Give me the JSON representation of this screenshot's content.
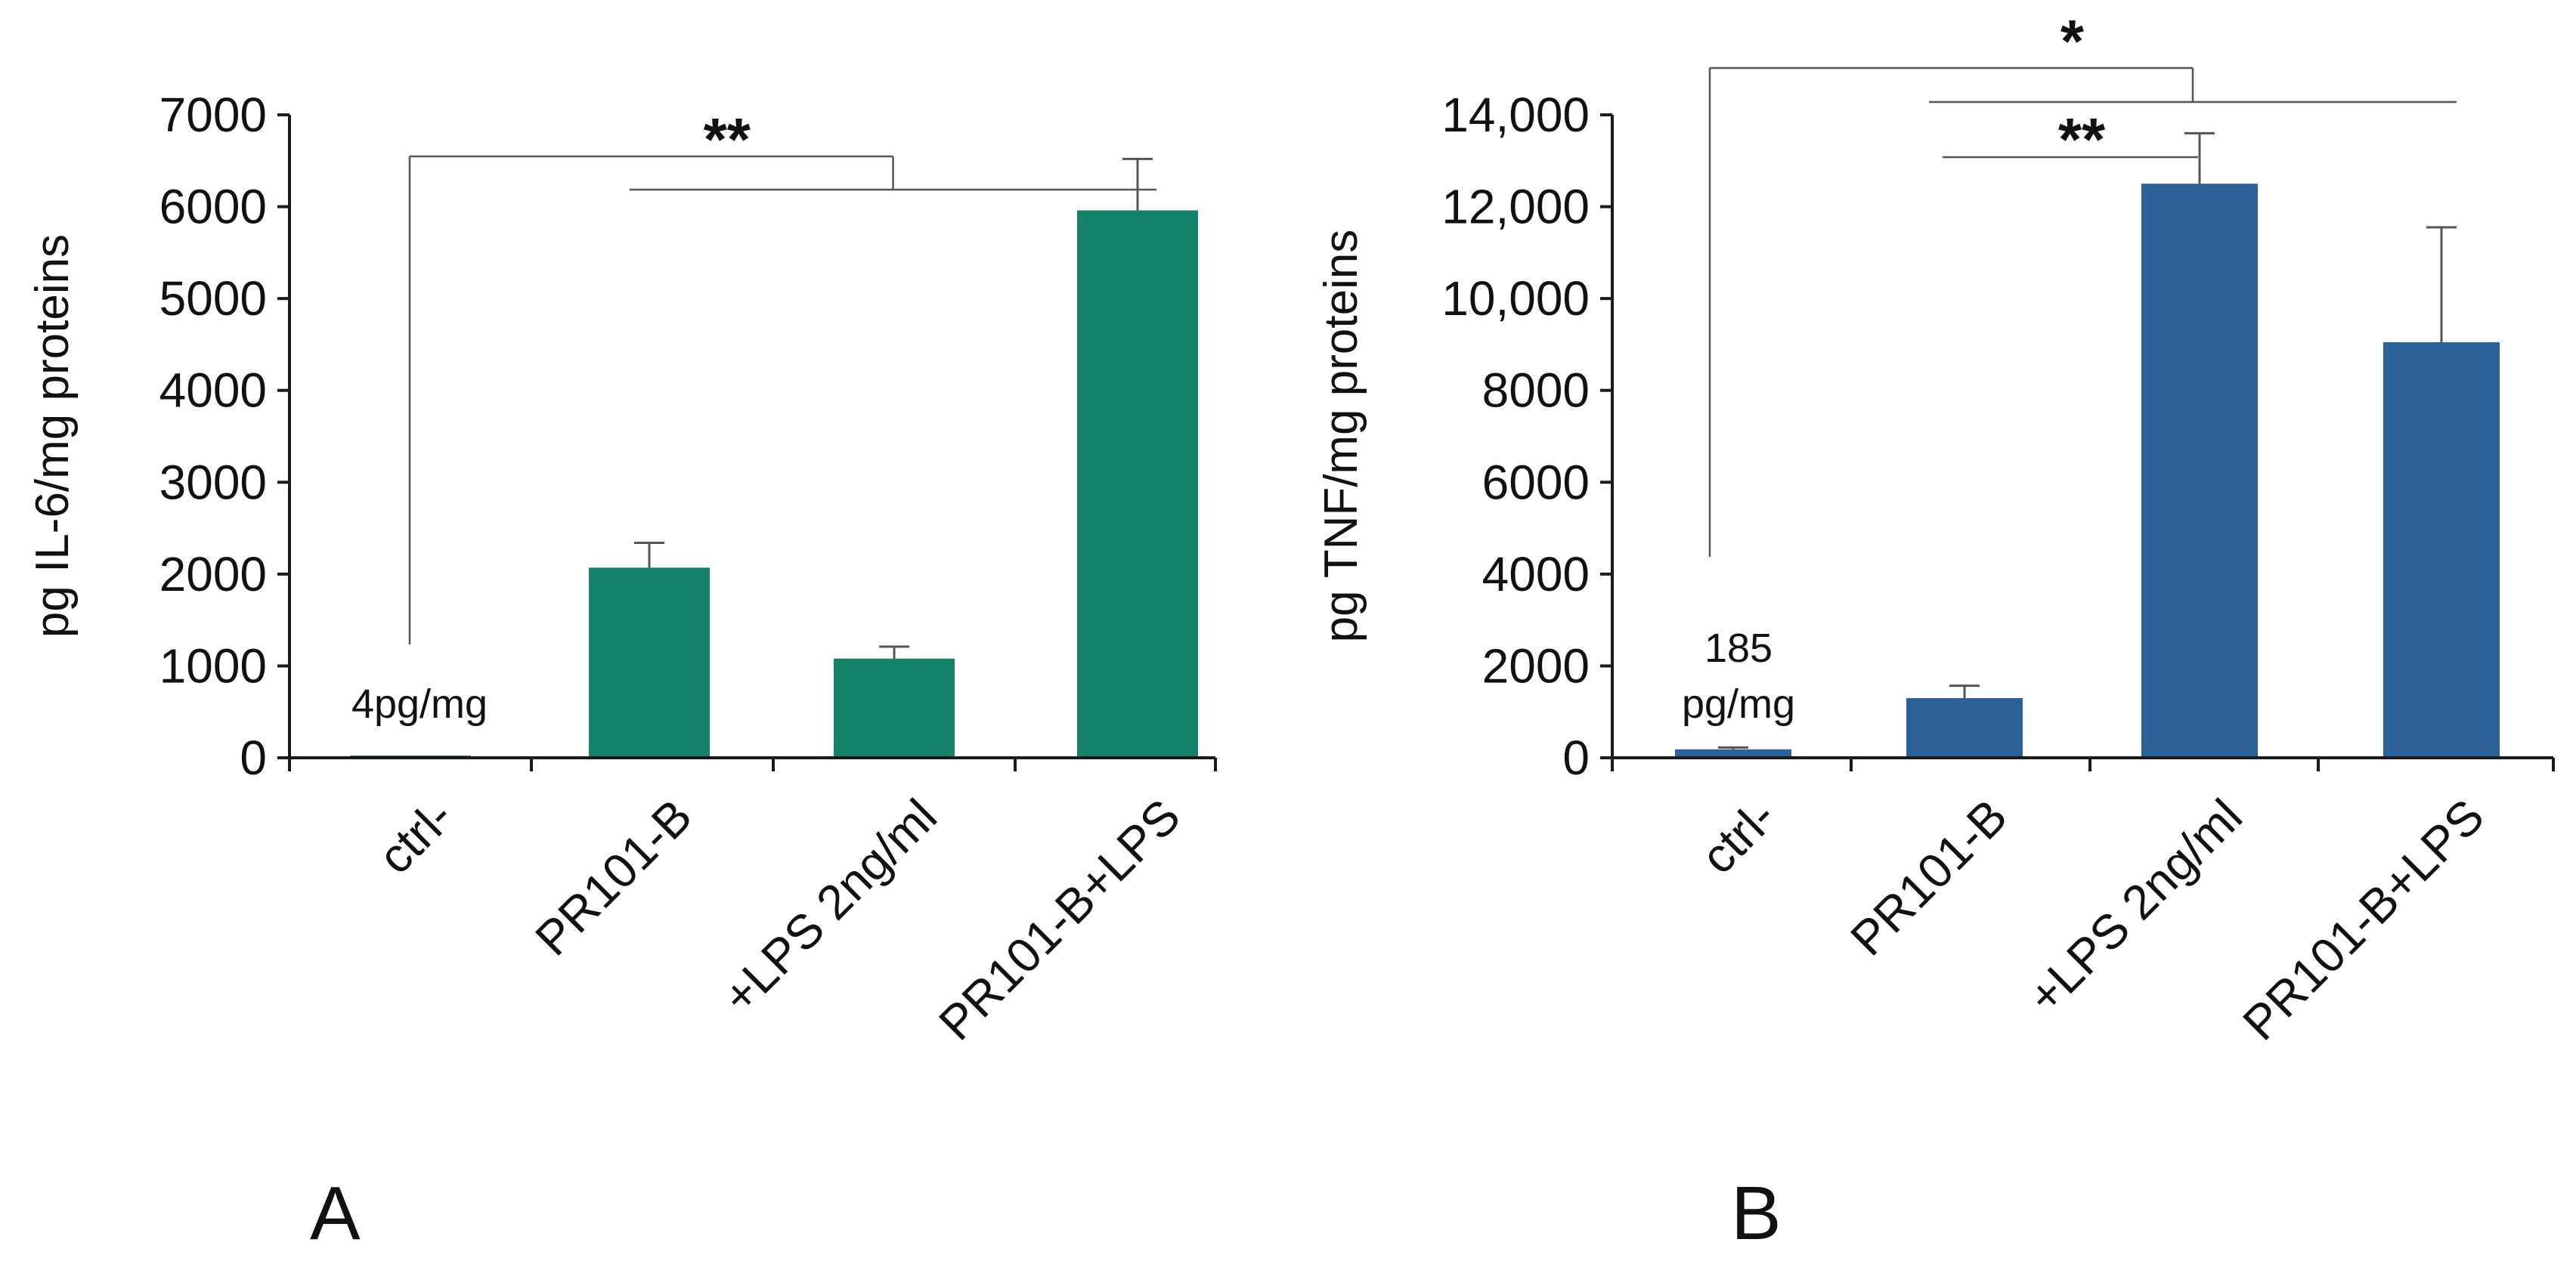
{
  "chart_data": [
    {
      "panel": "A",
      "type": "bar",
      "title": "",
      "xlabel": "",
      "ylabel": "pg IL-6/mg proteins",
      "ylim": [
        0,
        7000
      ],
      "yticks": [
        0,
        1000,
        2000,
        3000,
        4000,
        5000,
        6000,
        7000
      ],
      "ytick_labels": [
        "0",
        "1000",
        "2000",
        "3000",
        "4000",
        "5000",
        "6000",
        "7000"
      ],
      "categories": [
        "ctrl-",
        "PR101-B",
        "+LPS 2ng/ml",
        "PR101-B+LPS"
      ],
      "values": [
        4,
        2070,
        1080,
        5960
      ],
      "errors": [
        0,
        270,
        130,
        560
      ],
      "color": "#15836A",
      "annotations": [
        {
          "text": "4pg/mg",
          "category": "ctrl-"
        }
      ],
      "significance": [
        {
          "text": "**",
          "from": "ctrl-",
          "to_group": [
            "PR101-B",
            "PR101-B+LPS"
          ]
        }
      ]
    },
    {
      "panel": "B",
      "type": "bar",
      "title": "",
      "xlabel": "",
      "ylabel": "pg TNF/mg proteins",
      "ylim": [
        0,
        14000
      ],
      "yticks": [
        0,
        2000,
        4000,
        6000,
        8000,
        10000,
        12000,
        14000
      ],
      "ytick_labels": [
        "0",
        "2000",
        "4000",
        "6000",
        "8000",
        "10,000",
        "12,000",
        "14,000"
      ],
      "categories": [
        "ctrl-",
        "PR101-B",
        "+LPS 2ng/ml",
        "PR101-B+LPS"
      ],
      "values": [
        185,
        1300,
        12500,
        9050
      ],
      "errors": [
        40,
        270,
        1100,
        2500
      ],
      "color": "#2A6199",
      "annotations": [
        {
          "text": "185",
          "category": "ctrl-"
        },
        {
          "text": "pg/mg",
          "category": "ctrl-"
        }
      ],
      "significance": [
        {
          "text": "*",
          "from": "ctrl-",
          "to_group": [
            "PR101-B",
            "PR101-B+LPS"
          ]
        },
        {
          "text": "**",
          "from": "PR101-B",
          "to": "+LPS 2ng/ml"
        }
      ]
    }
  ]
}
